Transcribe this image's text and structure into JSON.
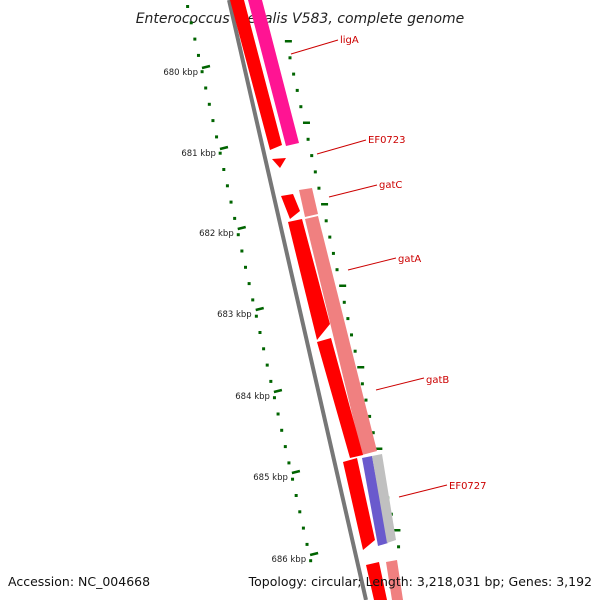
{
  "title": "Enterococcus faecalis V583, complete genome",
  "accession": "Accession: NC_004668",
  "summary": "Topology: circular; Length: 3,218,031 bp; Genes: 3,192",
  "ruler": {
    "unit": "kbp",
    "ticks": [
      "680 kbp",
      "681 kbp",
      "682 kbp",
      "683 kbp",
      "684 kbp",
      "685 kbp",
      "686 kbp"
    ]
  },
  "genes": [
    {
      "name": "ligA",
      "color": "#ff1493"
    },
    {
      "name": "EF0723",
      "color": "#ff0000"
    },
    {
      "name": "gatC",
      "color": "#ff0000"
    },
    {
      "name": "gatA",
      "color": "#ff0000"
    },
    {
      "name": "gatB",
      "color": "#ff0000"
    },
    {
      "name": "EF0727",
      "color": "#ff0000"
    }
  ],
  "colors": {
    "backbone": "#777777",
    "cds": "#ff0000",
    "cds_light": "#f08080",
    "rrna_like": "#ff33aa",
    "other": "#6a5acd",
    "tick": "#006400",
    "label": "#cc0000"
  }
}
